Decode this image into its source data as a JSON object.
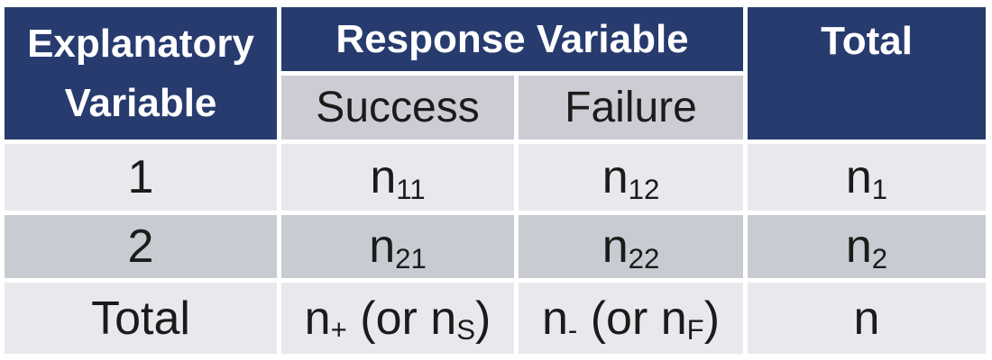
{
  "colors": {
    "header_navy": "#273b6f",
    "header_text_white": "#ffffff",
    "subheader_gray": "#cccdd4",
    "row_light_gray": "#e8e9ed",
    "row_dark_gray": "#c9cbd3",
    "body_text": "#1b1b1b",
    "gutter_white": "#ffffff"
  },
  "table": {
    "header": {
      "explanatory_label": "Explanatory Variable",
      "response_label": "Response Variable",
      "success_label": "Success",
      "failure_label": "Failure",
      "total_label": "Total"
    },
    "rows": [
      {
        "label": "1",
        "success": [
          {
            "t": "n"
          },
          {
            "t": "11",
            "sub": true
          }
        ],
        "failure": [
          {
            "t": "n"
          },
          {
            "t": "12",
            "sub": true
          }
        ],
        "total": [
          {
            "t": "n"
          },
          {
            "t": "1",
            "sub": true
          }
        ]
      },
      {
        "label": "2",
        "success": [
          {
            "t": "n"
          },
          {
            "t": "21",
            "sub": true
          }
        ],
        "failure": [
          {
            "t": "n"
          },
          {
            "t": "22",
            "sub": true
          }
        ],
        "total": [
          {
            "t": "n"
          },
          {
            "t": "2",
            "sub": true
          }
        ]
      },
      {
        "label": "Total",
        "success": [
          {
            "t": "n"
          },
          {
            "t": "+",
            "sub": true
          },
          {
            "t": " (or n"
          },
          {
            "t": "S",
            "sub": true
          },
          {
            "t": ")"
          }
        ],
        "failure": [
          {
            "t": "n"
          },
          {
            "t": "-",
            "sub": true
          },
          {
            "t": " (or n"
          },
          {
            "t": "F",
            "sub": true
          },
          {
            "t": ")"
          }
        ],
        "total": [
          {
            "t": "n"
          }
        ]
      }
    ]
  },
  "chart_data": {
    "type": "table",
    "title": "",
    "column_header_groups": [
      {
        "label": "Explanatory Variable",
        "colspan": 1,
        "rowspan": 2
      },
      {
        "label": "Response Variable",
        "colspan": 2,
        "rowspan": 1
      },
      {
        "label": "Total",
        "colspan": 1,
        "rowspan": 2
      }
    ],
    "sub_headers": [
      "Success",
      "Failure"
    ],
    "rows": [
      [
        "1",
        "n_11",
        "n_12",
        "n_1"
      ],
      [
        "2",
        "n_21",
        "n_22",
        "n_2"
      ],
      [
        "Total",
        "n_+ (or n_S)",
        "n_- (or n_F)",
        "n"
      ]
    ],
    "legend_position": "none",
    "grid": "white cell gutters"
  }
}
